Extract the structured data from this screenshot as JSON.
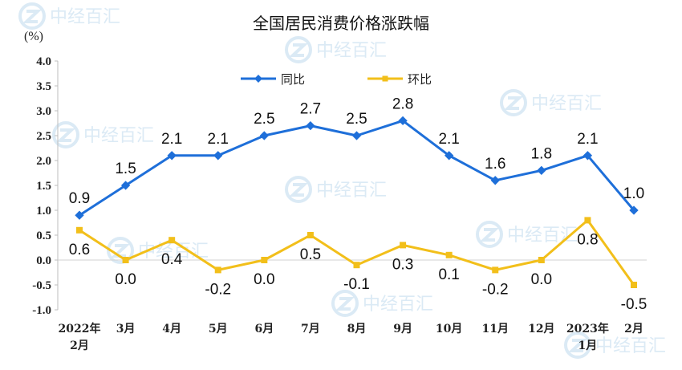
{
  "watermark": "中经百汇",
  "chart_data": {
    "type": "line",
    "title": "全国居民消费价格涨跌幅",
    "unit": "(%)",
    "categories": [
      "2022年\n2月",
      "3月",
      "4月",
      "5月",
      "6月",
      "7月",
      "8月",
      "9月",
      "10月",
      "11月",
      "12月",
      "2023年\n1月",
      "2月"
    ],
    "ylim": [
      -1.0,
      4.0
    ],
    "yticks": [
      "4.0",
      "3.5",
      "3.0",
      "2.5",
      "2.0",
      "1.5",
      "1.0",
      "0.5",
      "0.0",
      "-0.5",
      "-1.0"
    ],
    "legend_position": "top-center",
    "grid": false,
    "series": [
      {
        "name": "同比",
        "color": "#1e6fd9",
        "marker": "diamond",
        "values": [
          0.9,
          1.5,
          2.1,
          2.1,
          2.5,
          2.7,
          2.5,
          2.8,
          2.1,
          1.6,
          1.8,
          2.1,
          1.0
        ],
        "labels": [
          "0.9",
          "1.5",
          "2.1",
          "2.1",
          "2.5",
          "2.7",
          "2.5",
          "2.8",
          "2.1",
          "1.6",
          "1.8",
          "2.1",
          "1.0"
        ]
      },
      {
        "name": "环比",
        "color": "#f2bf1a",
        "marker": "square",
        "values": [
          0.6,
          0.0,
          0.4,
          -0.2,
          0.0,
          0.5,
          -0.1,
          0.3,
          0.1,
          -0.2,
          0.0,
          0.8,
          -0.5
        ],
        "labels": [
          "0.6",
          "0.0",
          "0.4",
          "-0.2",
          "0.0",
          "0.5",
          "-0.1",
          "0.3",
          "0.1",
          "-0.2",
          "0.0",
          "0.8",
          "-0.5"
        ]
      }
    ]
  }
}
